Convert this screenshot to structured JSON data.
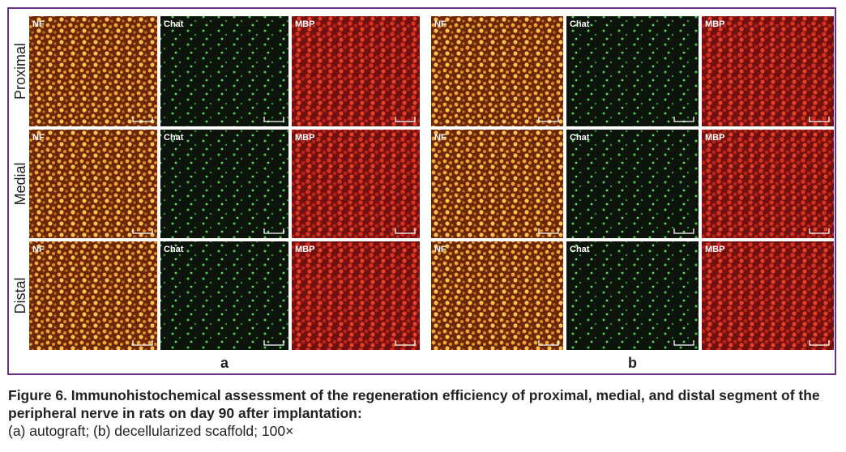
{
  "row_labels": [
    "Proximal",
    "Medial",
    "Distal"
  ],
  "groups": [
    {
      "label": "a",
      "panels": [
        [
          "NF",
          "Chat",
          "MBP"
        ],
        [
          "NF",
          "Chat",
          "MBP"
        ],
        [
          "NF",
          "Chat",
          "MBP"
        ]
      ]
    },
    {
      "label": "b",
      "panels": [
        [
          "NF",
          "Chat",
          "MBP"
        ],
        [
          "NF",
          "Chat",
          "MBP"
        ],
        [
          "NF",
          "Chat",
          "MBP"
        ]
      ]
    }
  ],
  "caption": {
    "title": "Figure 6. Immunohistochemical assessment of the regeneration efficiency of proximal, medial, and distal segment of the peripheral nerve in rats on day 90 after implantation:",
    "text": "(a) autograft; (b) decellularized scaffold; 100×"
  }
}
